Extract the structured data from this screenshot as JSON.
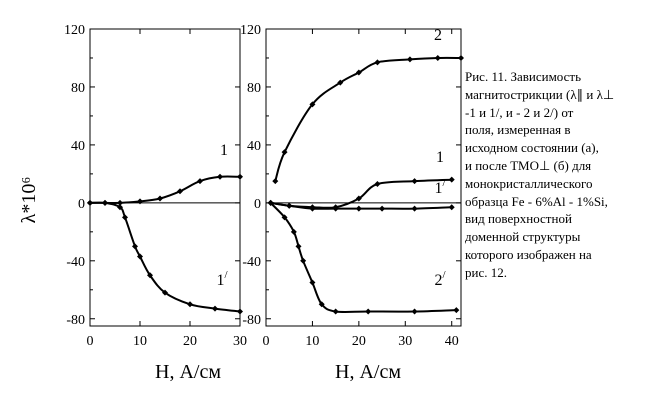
{
  "chart_data": [
    {
      "type": "line",
      "panel": "a",
      "ylabel": "λ*10⁶",
      "xlabel": "H, А/см",
      "xlim": [
        0,
        30
      ],
      "ylim": [
        -85,
        120
      ],
      "xticks": [
        0,
        10,
        20,
        30
      ],
      "yticks": [
        120,
        80,
        40,
        0,
        -40,
        -80
      ],
      "grid": false,
      "series": [
        {
          "name": "1",
          "x": [
            0,
            3,
            6,
            10,
            14,
            18,
            22,
            26,
            30
          ],
          "y": [
            0,
            0,
            0,
            1,
            3,
            8,
            15,
            18,
            18
          ]
        },
        {
          "name": "1/",
          "x": [
            0,
            3,
            6,
            7,
            9,
            10,
            12,
            15,
            20,
            25,
            30
          ],
          "y": [
            0,
            0,
            -3,
            -10,
            -30,
            -37,
            -50,
            -62,
            -70,
            -73,
            -75
          ]
        }
      ]
    },
    {
      "type": "line",
      "panel": "б",
      "xlabel": "H, А/см",
      "xlim": [
        0,
        42
      ],
      "ylim": [
        -85,
        120
      ],
      "xticks": [
        0,
        10,
        20,
        30,
        40
      ],
      "yticks": [
        120,
        80,
        40,
        0,
        -40,
        -80
      ],
      "grid": false,
      "series": [
        {
          "name": "2",
          "x": [
            2,
            4,
            10,
            16,
            20,
            24,
            31,
            37,
            42
          ],
          "y": [
            15,
            35,
            68,
            83,
            90,
            97,
            99,
            100,
            100
          ]
        },
        {
          "name": "1",
          "x": [
            1,
            5,
            10,
            15,
            20,
            24,
            32,
            40
          ],
          "y": [
            0,
            -2,
            -3,
            -3,
            3,
            13,
            15,
            16
          ]
        },
        {
          "name": "1/",
          "x": [
            1,
            5,
            10,
            15,
            20,
            25,
            32,
            40
          ],
          "y": [
            0,
            -2,
            -4,
            -4,
            -4,
            -4,
            -4,
            -3
          ]
        },
        {
          "name": "2/",
          "x": [
            1,
            4,
            6,
            7,
            8,
            10,
            12,
            15,
            22,
            32,
            41
          ],
          "y": [
            0,
            -10,
            -20,
            -30,
            -40,
            -55,
            -70,
            -75,
            -75,
            -75,
            -74
          ]
        }
      ]
    }
  ],
  "caption": {
    "lines": [
      "Рис.     11.   Зависимость",
      "магнитострикции (λ∥ и λ⊥",
      "-1 и 1/,    и    - 2 и 2/) от",
      "поля,          измеренная    в",
      "исходном состоянии (а),",
      "и после ТМО⊥ (б) для",
      "монокристаллического",
      "образца Fe - 6%Al - 1%Si,",
      "вид         поверхностной",
      "доменной          структуры",
      "которого   изображен   на",
      "рис. 12."
    ]
  }
}
